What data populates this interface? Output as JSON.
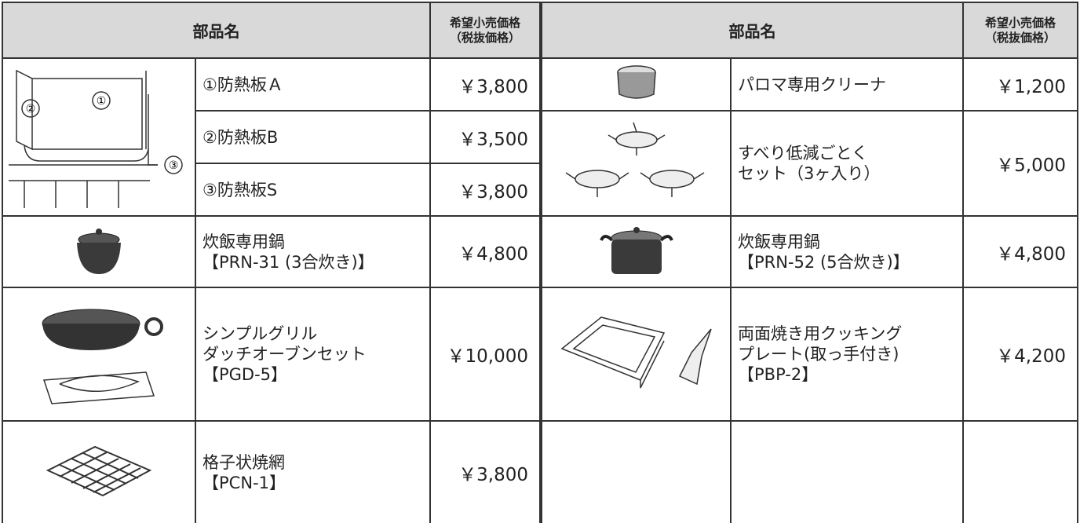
{
  "header": {
    "left": {
      "name": "部品名",
      "price": [
        "希望小売価格",
        "（税抜価格）"
      ]
    },
    "right": {
      "name": "部品名",
      "price": [
        "希望小売価格",
        "（税抜価格）"
      ]
    }
  },
  "diagram_labels": [
    "②",
    "①",
    "③"
  ],
  "left_items": [
    {
      "name": [
        "①防熱板Ａ"
      ],
      "price": "￥3,800"
    },
    {
      "name": [
        "②防熱板B"
      ],
      "price": "￥3,500"
    },
    {
      "name": [
        "③防熱板S"
      ],
      "price": "￥3,800"
    },
    {
      "name": [
        "炊飯専用鍋",
        "【PRN-31 (3合炊き)】"
      ],
      "price": "￥4,800"
    },
    {
      "name": [
        "シンプルグリル",
        "ダッチオーブンセット",
        "【PGD-5】"
      ],
      "price": "￥10,000"
    },
    {
      "name": [
        "格子状焼網",
        "【PCN-1】"
      ],
      "price": "￥3,800"
    }
  ],
  "right_items": [
    {
      "name": [
        "パロマ専用クリーナ"
      ],
      "price": "￥1,200"
    },
    {
      "name": [
        "すべり低減ごとく",
        "セット（3ヶ入り）"
      ],
      "price": "￥5,000"
    },
    {
      "name": [
        "炊飯専用鍋",
        "【PRN-52 (5合炊き)】"
      ],
      "price": "￥4,800"
    },
    {
      "name": [
        "両面焼き用クッキング",
        "プレート(取っ手付き)",
        "【PBP-2】"
      ],
      "price": "￥4,200"
    }
  ]
}
